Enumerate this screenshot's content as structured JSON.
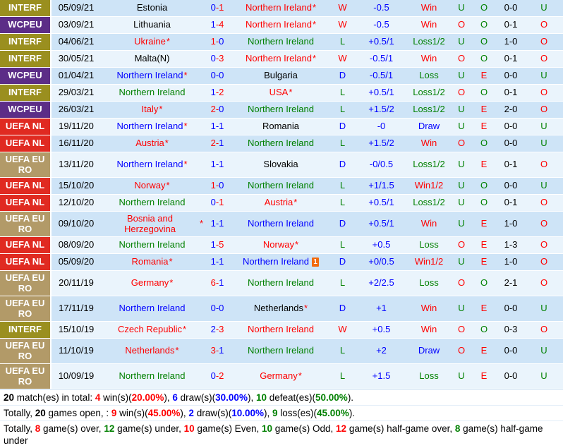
{
  "colors": {
    "text": {
      "black": "#000000",
      "red": "#ff0000",
      "green": "#008000",
      "blue": "#0000ff"
    },
    "competition": {
      "interf": "#9a8f1f",
      "wcpeu": "#5c2d87",
      "uefa_nl": "#e02a21",
      "uefa_euro": "#b29a68"
    },
    "row_dark": "#cee4f7",
    "row_light": "#eaf4fc",
    "result_letter": {
      "W": "red",
      "L": "green",
      "D": "blue"
    },
    "outcome": {
      "Win": "red",
      "Win1/2": "red",
      "Loss": "green",
      "Loss1/2": "green",
      "Draw": "blue"
    },
    "over_under": {
      "O": "red",
      "U": "green"
    },
    "odd_even": {
      "O": "green",
      "E": "red"
    }
  },
  "red_card_icon_label": "1",
  "table": {
    "rows": [
      {
        "comp": "INTERF",
        "comp_key": "interf",
        "tall": false,
        "date": "05/09/21",
        "home": "Estonia",
        "home_color": "black",
        "home_star": false,
        "score_home": "0",
        "score_home_color": "blue",
        "score_away": "1",
        "score_away_color": "red",
        "score_dash_color": "red",
        "away": "Northern Ireland",
        "away_color": "red",
        "away_star": true,
        "away_red_card": false,
        "result": "W",
        "handicap": "-0.5",
        "outcome": "Win",
        "over_under": "U",
        "odd_even": "O",
        "halftime_score": "0-0",
        "halftime_over_under": "U"
      },
      {
        "comp": "WCPEU",
        "comp_key": "wcpeu",
        "tall": false,
        "date": "03/09/21",
        "home": "Lithuania",
        "home_color": "black",
        "home_star": false,
        "score_home": "1",
        "score_home_color": "blue",
        "score_away": "4",
        "score_away_color": "red",
        "score_dash_color": "red",
        "away": "Northern Ireland",
        "away_color": "red",
        "away_star": true,
        "away_red_card": false,
        "result": "W",
        "handicap": "-0.5",
        "outcome": "Win",
        "over_under": "O",
        "odd_even": "O",
        "halftime_score": "0-1",
        "halftime_over_under": "O"
      },
      {
        "comp": "INTERF",
        "comp_key": "interf",
        "tall": false,
        "date": "04/06/21",
        "home": "Ukraine",
        "home_color": "red",
        "home_star": true,
        "score_home": "1",
        "score_home_color": "red",
        "score_away": "0",
        "score_away_color": "blue",
        "score_dash_color": "red",
        "away": "Northern Ireland",
        "away_color": "green",
        "away_star": false,
        "away_red_card": false,
        "result": "L",
        "handicap": "+0.5/1",
        "outcome": "Loss1/2",
        "over_under": "U",
        "odd_even": "O",
        "halftime_score": "1-0",
        "halftime_over_under": "O"
      },
      {
        "comp": "INTERF",
        "comp_key": "interf",
        "tall": false,
        "date": "30/05/21",
        "home": "Malta(N)",
        "home_color": "black",
        "home_star": false,
        "score_home": "0",
        "score_home_color": "blue",
        "score_away": "3",
        "score_away_color": "red",
        "score_dash_color": "red",
        "away": "Northern Ireland",
        "away_color": "red",
        "away_star": true,
        "away_red_card": false,
        "result": "W",
        "handicap": "-0.5/1",
        "outcome": "Win",
        "over_under": "O",
        "odd_even": "O",
        "halftime_score": "0-1",
        "halftime_over_under": "O"
      },
      {
        "comp": "WCPEU",
        "comp_key": "wcpeu",
        "tall": false,
        "date": "01/04/21",
        "home": "Northern Ireland",
        "home_color": "blue",
        "home_star": true,
        "score_home": "0",
        "score_home_color": "blue",
        "score_away": "0",
        "score_away_color": "blue",
        "score_dash_color": "blue",
        "away": "Bulgaria",
        "away_color": "black",
        "away_star": false,
        "away_red_card": false,
        "result": "D",
        "handicap": "-0.5/1",
        "outcome": "Loss",
        "over_under": "U",
        "odd_even": "E",
        "halftime_score": "0-0",
        "halftime_over_under": "U"
      },
      {
        "comp": "INTERF",
        "comp_key": "interf",
        "tall": false,
        "date": "29/03/21",
        "home": "Northern Ireland",
        "home_color": "green",
        "home_star": false,
        "score_home": "1",
        "score_home_color": "blue",
        "score_away": "2",
        "score_away_color": "red",
        "score_dash_color": "red",
        "away": "USA",
        "away_color": "red",
        "away_star": true,
        "away_red_card": false,
        "result": "L",
        "handicap": "+0.5/1",
        "outcome": "Loss1/2",
        "over_under": "O",
        "odd_even": "O",
        "halftime_score": "0-1",
        "halftime_over_under": "O"
      },
      {
        "comp": "WCPEU",
        "comp_key": "wcpeu",
        "tall": false,
        "date": "26/03/21",
        "home": "Italy",
        "home_color": "red",
        "home_star": true,
        "score_home": "2",
        "score_home_color": "red",
        "score_away": "0",
        "score_away_color": "blue",
        "score_dash_color": "red",
        "away": "Northern Ireland",
        "away_color": "green",
        "away_star": false,
        "away_red_card": false,
        "result": "L",
        "handicap": "+1.5/2",
        "outcome": "Loss1/2",
        "over_under": "U",
        "odd_even": "E",
        "halftime_score": "2-0",
        "halftime_over_under": "O"
      },
      {
        "comp": "UEFA NL",
        "comp_key": "uefa_nl",
        "tall": false,
        "date": "19/11/20",
        "home": "Northern Ireland",
        "home_color": "blue",
        "home_star": true,
        "score_home": "1",
        "score_home_color": "blue",
        "score_away": "1",
        "score_away_color": "blue",
        "score_dash_color": "blue",
        "away": "Romania",
        "away_color": "black",
        "away_star": false,
        "away_red_card": false,
        "result": "D",
        "handicap": "-0",
        "outcome": "Draw",
        "over_under": "U",
        "odd_even": "E",
        "halftime_score": "0-0",
        "halftime_over_under": "U"
      },
      {
        "comp": "UEFA NL",
        "comp_key": "uefa_nl",
        "tall": false,
        "date": "16/11/20",
        "home": "Austria",
        "home_color": "red",
        "home_star": true,
        "score_home": "2",
        "score_home_color": "red",
        "score_away": "1",
        "score_away_color": "blue",
        "score_dash_color": "red",
        "away": "Northern Ireland",
        "away_color": "green",
        "away_star": false,
        "away_red_card": false,
        "result": "L",
        "handicap": "+1.5/2",
        "outcome": "Win",
        "over_under": "O",
        "odd_even": "O",
        "halftime_score": "0-0",
        "halftime_over_under": "U"
      },
      {
        "comp": "UEFA EURO",
        "comp_key": "uefa_euro",
        "tall": true,
        "date": "13/11/20",
        "home": "Northern Ireland",
        "home_color": "blue",
        "home_star": true,
        "score_home": "1",
        "score_home_color": "blue",
        "score_away": "1",
        "score_away_color": "blue",
        "score_dash_color": "blue",
        "away": "Slovakia",
        "away_color": "black",
        "away_star": false,
        "away_red_card": false,
        "result": "D",
        "handicap": "-0/0.5",
        "outcome": "Loss1/2",
        "over_under": "U",
        "odd_even": "E",
        "halftime_score": "0-1",
        "halftime_over_under": "O"
      },
      {
        "comp": "UEFA NL",
        "comp_key": "uefa_nl",
        "tall": false,
        "date": "15/10/20",
        "home": "Norway",
        "home_color": "red",
        "home_star": true,
        "score_home": "1",
        "score_home_color": "red",
        "score_away": "0",
        "score_away_color": "blue",
        "score_dash_color": "red",
        "away": "Northern Ireland",
        "away_color": "green",
        "away_star": false,
        "away_red_card": false,
        "result": "L",
        "handicap": "+1/1.5",
        "outcome": "Win1/2",
        "over_under": "U",
        "odd_even": "O",
        "halftime_score": "0-0",
        "halftime_over_under": "U"
      },
      {
        "comp": "UEFA NL",
        "comp_key": "uefa_nl",
        "tall": false,
        "date": "12/10/20",
        "home": "Northern Ireland",
        "home_color": "green",
        "home_star": false,
        "score_home": "0",
        "score_home_color": "blue",
        "score_away": "1",
        "score_away_color": "red",
        "score_dash_color": "red",
        "away": "Austria",
        "away_color": "red",
        "away_star": true,
        "away_red_card": false,
        "result": "L",
        "handicap": "+0.5/1",
        "outcome": "Loss1/2",
        "over_under": "U",
        "odd_even": "O",
        "halftime_score": "0-1",
        "halftime_over_under": "O"
      },
      {
        "comp": "UEFA EURO",
        "comp_key": "uefa_euro",
        "tall": true,
        "date": "09/10/20",
        "home": "Bosnia and Herzegovina",
        "home_color": "red",
        "home_star": true,
        "score_home": "1",
        "score_home_color": "blue",
        "score_away": "1",
        "score_away_color": "blue",
        "score_dash_color": "blue",
        "away": "Northern Ireland",
        "away_color": "blue",
        "away_star": false,
        "away_red_card": false,
        "result": "D",
        "handicap": "+0.5/1",
        "outcome": "Win",
        "over_under": "U",
        "odd_even": "E",
        "halftime_score": "1-0",
        "halftime_over_under": "O"
      },
      {
        "comp": "UEFA NL",
        "comp_key": "uefa_nl",
        "tall": false,
        "date": "08/09/20",
        "home": "Northern Ireland",
        "home_color": "green",
        "home_star": false,
        "score_home": "1",
        "score_home_color": "blue",
        "score_away": "5",
        "score_away_color": "red",
        "score_dash_color": "red",
        "away": "Norway",
        "away_color": "red",
        "away_star": true,
        "away_red_card": false,
        "result": "L",
        "handicap": "+0.5",
        "outcome": "Loss",
        "over_under": "O",
        "odd_even": "E",
        "halftime_score": "1-3",
        "halftime_over_under": "O"
      },
      {
        "comp": "UEFA NL",
        "comp_key": "uefa_nl",
        "tall": false,
        "date": "05/09/20",
        "home": "Romania",
        "home_color": "red",
        "home_star": true,
        "score_home": "1",
        "score_home_color": "blue",
        "score_away": "1",
        "score_away_color": "blue",
        "score_dash_color": "blue",
        "away": "Northern Ireland",
        "away_color": "blue",
        "away_star": false,
        "away_red_card": true,
        "result": "D",
        "handicap": "+0/0.5",
        "outcome": "Win1/2",
        "over_under": "U",
        "odd_even": "E",
        "halftime_score": "1-0",
        "halftime_over_under": "O"
      },
      {
        "comp": "UEFA EURO",
        "comp_key": "uefa_euro",
        "tall": true,
        "date": "20/11/19",
        "home": "Germany",
        "home_color": "red",
        "home_star": true,
        "score_home": "6",
        "score_home_color": "red",
        "score_away": "1",
        "score_away_color": "blue",
        "score_dash_color": "red",
        "away": "Northern Ireland",
        "away_color": "green",
        "away_star": false,
        "away_red_card": false,
        "result": "L",
        "handicap": "+2/2.5",
        "outcome": "Loss",
        "over_under": "O",
        "odd_even": "O",
        "halftime_score": "2-1",
        "halftime_over_under": "O"
      },
      {
        "comp": "UEFA EURO",
        "comp_key": "uefa_euro",
        "tall": true,
        "date": "17/11/19",
        "home": "Northern Ireland",
        "home_color": "blue",
        "home_star": false,
        "score_home": "0",
        "score_home_color": "blue",
        "score_away": "0",
        "score_away_color": "blue",
        "score_dash_color": "blue",
        "away": "Netherlands",
        "away_color": "black",
        "away_star": true,
        "away_red_card": false,
        "result": "D",
        "handicap": "+1",
        "outcome": "Win",
        "over_under": "U",
        "odd_even": "E",
        "halftime_score": "0-0",
        "halftime_over_under": "U"
      },
      {
        "comp": "INTERF",
        "comp_key": "interf",
        "tall": false,
        "date": "15/10/19",
        "home": "Czech Republic",
        "home_color": "red",
        "home_star": true,
        "score_home": "2",
        "score_home_color": "blue",
        "score_away": "3",
        "score_away_color": "red",
        "score_dash_color": "red",
        "away": "Northern Ireland",
        "away_color": "red",
        "away_star": false,
        "away_red_card": false,
        "result": "W",
        "handicap": "+0.5",
        "outcome": "Win",
        "over_under": "O",
        "odd_even": "O",
        "halftime_score": "0-3",
        "halftime_over_under": "O"
      },
      {
        "comp": "UEFA EURO",
        "comp_key": "uefa_euro",
        "tall": true,
        "date": "11/10/19",
        "home": "Netherlands",
        "home_color": "red",
        "home_star": true,
        "score_home": "3",
        "score_home_color": "red",
        "score_away": "1",
        "score_away_color": "blue",
        "score_dash_color": "red",
        "away": "Northern Ireland",
        "away_color": "green",
        "away_star": false,
        "away_red_card": false,
        "result": "L",
        "handicap": "+2",
        "outcome": "Draw",
        "over_under": "O",
        "odd_even": "E",
        "halftime_score": "0-0",
        "halftime_over_under": "U"
      },
      {
        "comp": "UEFA EURO",
        "comp_key": "uefa_euro",
        "tall": true,
        "date": "10/09/19",
        "home": "Northern Ireland",
        "home_color": "green",
        "home_star": false,
        "score_home": "0",
        "score_home_color": "blue",
        "score_away": "2",
        "score_away_color": "red",
        "score_dash_color": "red",
        "away": "Germany",
        "away_color": "red",
        "away_star": true,
        "away_red_card": false,
        "result": "L",
        "handicap": "+1.5",
        "outcome": "Loss",
        "over_under": "U",
        "odd_even": "E",
        "halftime_score": "0-0",
        "halftime_over_under": "U"
      }
    ]
  },
  "summary": {
    "lines": [
      [
        {
          "text": "20",
          "color": "black",
          "bold": true
        },
        {
          "text": " match(es) in total: ",
          "color": "black"
        },
        {
          "text": "4",
          "color": "red",
          "bold": true
        },
        {
          "text": " win(s)(",
          "color": "black"
        },
        {
          "text": "20.00%",
          "color": "red",
          "bold": true
        },
        {
          "text": "), ",
          "color": "black"
        },
        {
          "text": "6",
          "color": "blue",
          "bold": true
        },
        {
          "text": " draw(s)(",
          "color": "black"
        },
        {
          "text": "30.00%",
          "color": "blue",
          "bold": true
        },
        {
          "text": "), ",
          "color": "black"
        },
        {
          "text": "10",
          "color": "green",
          "bold": true
        },
        {
          "text": " defeat(es)(",
          "color": "black"
        },
        {
          "text": "50.00%",
          "color": "green",
          "bold": true
        },
        {
          "text": ").",
          "color": "black"
        }
      ],
      [
        {
          "text": "Totally, ",
          "color": "black"
        },
        {
          "text": "20",
          "color": "black",
          "bold": true
        },
        {
          "text": " games open, : ",
          "color": "black"
        },
        {
          "text": "9",
          "color": "red",
          "bold": true
        },
        {
          "text": " win(s)(",
          "color": "black"
        },
        {
          "text": "45.00%",
          "color": "red",
          "bold": true
        },
        {
          "text": "), ",
          "color": "black"
        },
        {
          "text": "2",
          "color": "blue",
          "bold": true
        },
        {
          "text": " draw(s)(",
          "color": "black"
        },
        {
          "text": "10.00%",
          "color": "blue",
          "bold": true
        },
        {
          "text": "), ",
          "color": "black"
        },
        {
          "text": "9",
          "color": "green",
          "bold": true
        },
        {
          "text": " loss(es)(",
          "color": "black"
        },
        {
          "text": "45.00%",
          "color": "green",
          "bold": true
        },
        {
          "text": ").",
          "color": "black"
        }
      ],
      [
        {
          "text": "Totally, ",
          "color": "black"
        },
        {
          "text": "8",
          "color": "red",
          "bold": true
        },
        {
          "text": " game(s) over, ",
          "color": "black"
        },
        {
          "text": "12",
          "color": "green",
          "bold": true
        },
        {
          "text": " game(s) under, ",
          "color": "black"
        },
        {
          "text": "10",
          "color": "red",
          "bold": true
        },
        {
          "text": " game(s) Even, ",
          "color": "black"
        },
        {
          "text": "10",
          "color": "green",
          "bold": true
        },
        {
          "text": " game(s) Odd, ",
          "color": "black"
        },
        {
          "text": "12",
          "color": "red",
          "bold": true
        },
        {
          "text": " game(s) half-game over, ",
          "color": "black"
        },
        {
          "text": "8",
          "color": "green",
          "bold": true
        },
        {
          "text": " game(s) half-game under",
          "color": "black"
        }
      ]
    ]
  }
}
